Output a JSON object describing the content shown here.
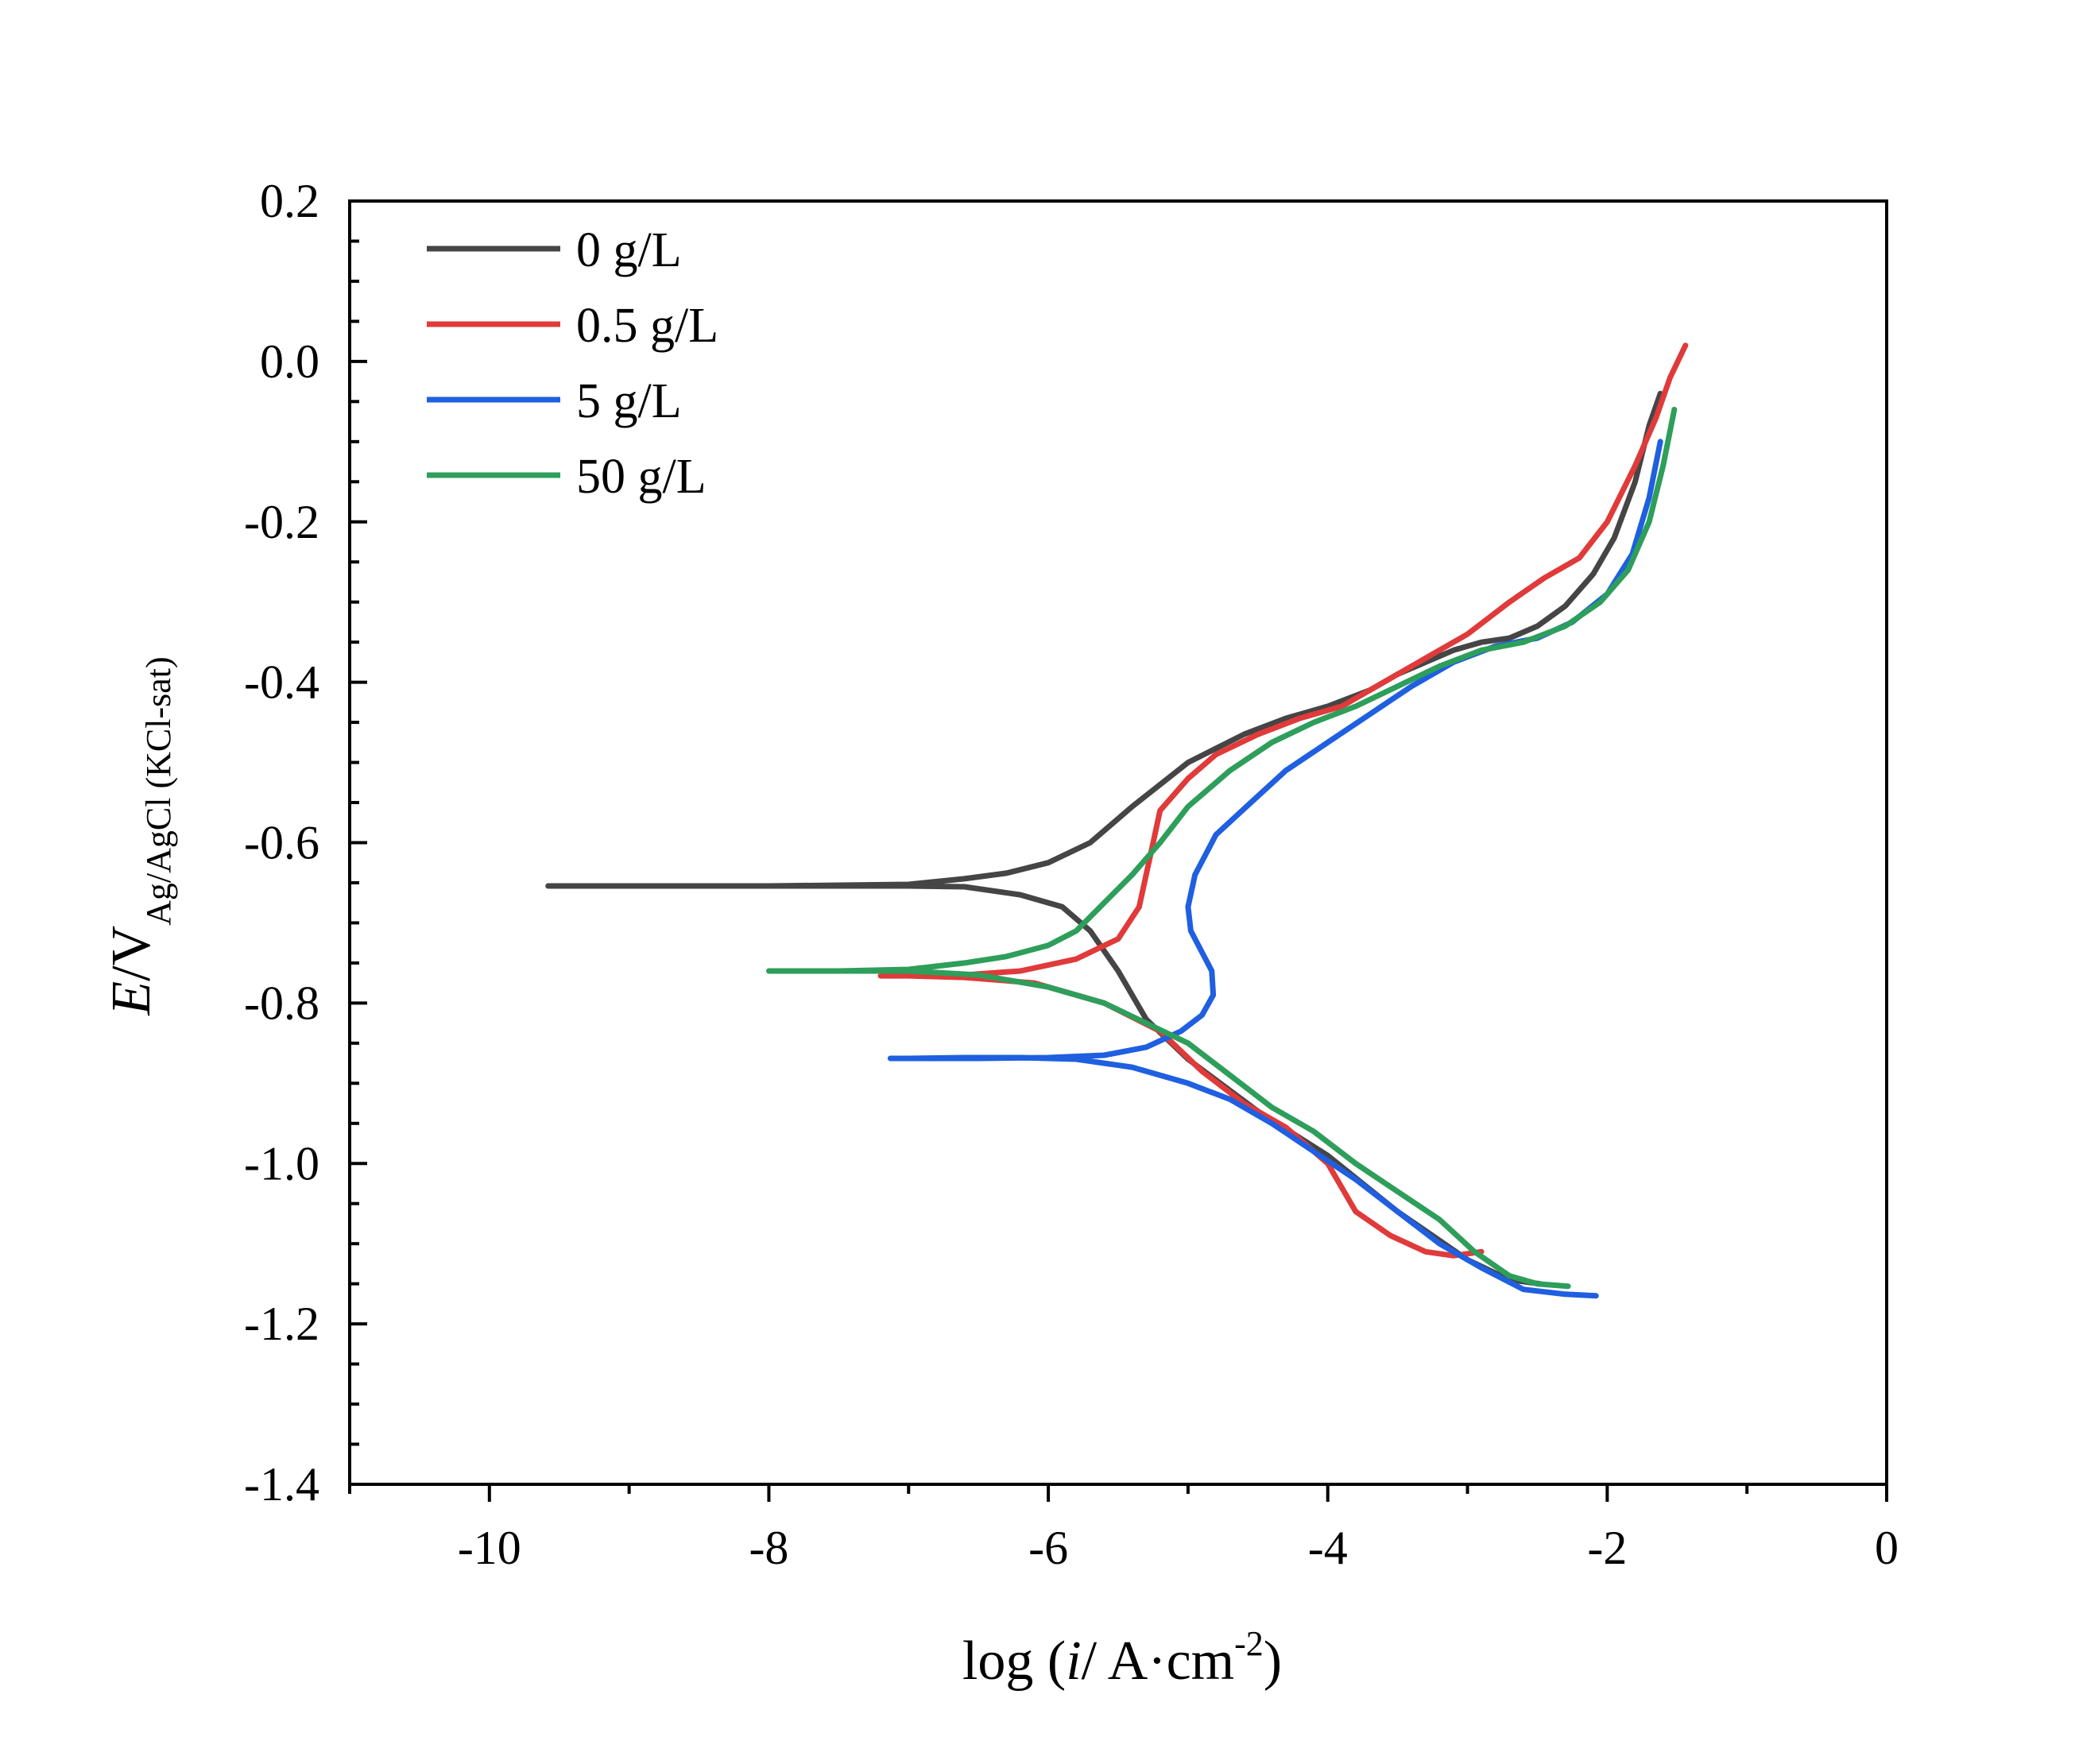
{
  "chart_data": {
    "type": "line",
    "title": "",
    "xlabel": {
      "pre": "log (",
      "var": "i",
      "mid": "/ A·cm",
      "sup": "-2",
      "post": ")"
    },
    "ylabel": {
      "var": "E",
      "mid": "/V",
      "sub": "Ag/AgCl (KCl-sat)"
    },
    "xlim": [
      -11,
      0
    ],
    "ylim": [
      -1.4,
      0.2
    ],
    "x_ticks": [
      -10,
      -8,
      -6,
      -4,
      -2,
      0
    ],
    "x_tick_labels": [
      "-10",
      "-8",
      "-6",
      "-4",
      "-2",
      "0"
    ],
    "y_ticks": [
      0.2,
      0.0,
      -0.2,
      -0.4,
      -0.6,
      -0.8,
      -1.0,
      -1.2,
      -1.4
    ],
    "y_tick_labels": [
      "0.2",
      "0.0",
      "-0.2",
      "-0.4",
      "-0.6",
      "-0.8",
      "-1.0",
      "-1.2",
      "-1.4"
    ],
    "grid": false,
    "legend_position": "top-left",
    "series": [
      {
        "name": "0 g/L",
        "color": "#454545",
        "x": [
          -2.48,
          -2.7,
          -3.0,
          -3.5,
          -4.0,
          -4.5,
          -5.0,
          -5.3,
          -5.5,
          -5.7,
          -5.9,
          -6.2,
          -6.6,
          -7.0,
          -8.0,
          -9.0,
          -9.58,
          -9.0,
          -8.0,
          -7.0,
          -6.6,
          -6.3,
          -6.0,
          -5.7,
          -5.4,
          -5.0,
          -4.6,
          -4.3,
          -4.0,
          -3.7,
          -3.5,
          -3.3,
          -3.1,
          -2.9,
          -2.7,
          -2.5,
          -2.3,
          -2.1,
          -1.95,
          -1.8,
          -1.7,
          -1.62
        ],
        "y": [
          -1.15,
          -1.145,
          -1.12,
          -1.06,
          -0.99,
          -0.935,
          -0.87,
          -0.82,
          -0.76,
          -0.71,
          -0.68,
          -0.665,
          -0.655,
          -0.654,
          -0.654,
          -0.654,
          -0.654,
          -0.654,
          -0.654,
          -0.652,
          -0.645,
          -0.638,
          -0.625,
          -0.6,
          -0.555,
          -0.5,
          -0.465,
          -0.445,
          -0.43,
          -0.41,
          -0.39,
          -0.375,
          -0.36,
          -0.35,
          -0.345,
          -0.33,
          -0.305,
          -0.265,
          -0.22,
          -0.15,
          -0.08,
          -0.04
        ]
      },
      {
        "name": "0.5 g/L",
        "color": "#e03a3a",
        "x": [
          -2.9,
          -3.1,
          -3.3,
          -3.55,
          -3.8,
          -4.0,
          -4.3,
          -4.6,
          -4.9,
          -5.2,
          -5.6,
          -6.1,
          -6.6,
          -7.0,
          -7.2,
          -6.6,
          -6.2,
          -5.8,
          -5.5,
          -5.35,
          -5.3,
          -5.25,
          -5.2,
          -5.0,
          -4.8,
          -4.5,
          -4.2,
          -3.9,
          -3.6,
          -3.3,
          -3.0,
          -2.7,
          -2.45,
          -2.2,
          -2.0,
          -1.8,
          -1.65,
          -1.55,
          -1.44
        ],
        "y": [
          -1.11,
          -1.115,
          -1.11,
          -1.09,
          -1.06,
          -1.0,
          -0.955,
          -0.925,
          -0.885,
          -0.835,
          -0.8,
          -0.775,
          -0.768,
          -0.766,
          -0.766,
          -0.765,
          -0.76,
          -0.745,
          -0.72,
          -0.68,
          -0.64,
          -0.6,
          -0.56,
          -0.52,
          -0.49,
          -0.465,
          -0.445,
          -0.43,
          -0.4,
          -0.37,
          -0.34,
          -0.3,
          -0.27,
          -0.245,
          -0.2,
          -0.13,
          -0.07,
          -0.02,
          0.02
        ]
      },
      {
        "name": "5 g/L",
        "color": "#1f5fe0",
        "x": [
          -2.08,
          -2.3,
          -2.6,
          -2.9,
          -3.2,
          -3.5,
          -3.8,
          -4.1,
          -4.4,
          -4.7,
          -5.0,
          -5.4,
          -5.8,
          -6.2,
          -6.6,
          -7.0,
          -7.13,
          -6.5,
          -6.0,
          -5.6,
          -5.3,
          -5.05,
          -4.9,
          -4.82,
          -4.83,
          -4.92,
          -4.98,
          -5.0,
          -4.95,
          -4.8,
          -4.55,
          -4.3,
          -4.0,
          -3.7,
          -3.4,
          -3.1,
          -2.8,
          -2.5,
          -2.25,
          -2.0,
          -1.82,
          -1.7,
          -1.62
        ],
        "y": [
          -1.165,
          -1.163,
          -1.157,
          -1.13,
          -1.1,
          -1.06,
          -1.02,
          -0.985,
          -0.95,
          -0.92,
          -0.9,
          -0.88,
          -0.87,
          -0.868,
          -0.868,
          -0.869,
          -0.869,
          -0.869,
          -0.868,
          -0.865,
          -0.855,
          -0.835,
          -0.815,
          -0.79,
          -0.76,
          -0.73,
          -0.71,
          -0.68,
          -0.64,
          -0.59,
          -0.55,
          -0.51,
          -0.475,
          -0.44,
          -0.405,
          -0.375,
          -0.355,
          -0.345,
          -0.325,
          -0.29,
          -0.24,
          -0.17,
          -0.1
        ]
      },
      {
        "name": "50 g/L",
        "color": "#2e9e5b",
        "x": [
          -2.28,
          -2.5,
          -2.7,
          -2.95,
          -3.2,
          -3.5,
          -3.8,
          -4.1,
          -4.4,
          -4.7,
          -5.0,
          -5.3,
          -5.6,
          -6.0,
          -6.5,
          -7.0,
          -7.5,
          -8.0,
          -7.5,
          -7.0,
          -6.6,
          -6.3,
          -6.0,
          -5.8,
          -5.6,
          -5.4,
          -5.2,
          -5.0,
          -4.7,
          -4.4,
          -4.1,
          -3.8,
          -3.5,
          -3.2,
          -2.9,
          -2.6,
          -2.3,
          -2.05,
          -1.85,
          -1.7,
          -1.6,
          -1.52
        ],
        "y": [
          -1.153,
          -1.15,
          -1.14,
          -1.11,
          -1.07,
          -1.035,
          -1.0,
          -0.96,
          -0.93,
          -0.89,
          -0.85,
          -0.825,
          -0.8,
          -0.78,
          -0.765,
          -0.76,
          -0.76,
          -0.76,
          -0.76,
          -0.758,
          -0.75,
          -0.742,
          -0.728,
          -0.71,
          -0.675,
          -0.64,
          -0.6,
          -0.555,
          -0.51,
          -0.475,
          -0.45,
          -0.43,
          -0.405,
          -0.38,
          -0.36,
          -0.35,
          -0.33,
          -0.3,
          -0.26,
          -0.2,
          -0.13,
          -0.06
        ]
      }
    ]
  }
}
